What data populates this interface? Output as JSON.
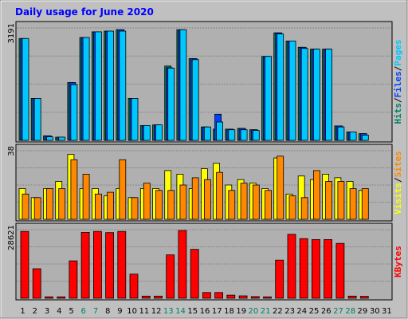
{
  "title": "Daily usage for June 2020",
  "colors": {
    "frame_bg": "#c0c0c0",
    "plot_bg": "#b0b0b0",
    "title": "#0000ff",
    "hits": "#00805f",
    "files": "#0040ff",
    "pages": "#00c8ff",
    "visits": "#ffff00",
    "sites": "#ff8800",
    "kbytes": "#ff0000",
    "weekday_label": "#000080",
    "weekend_label": "#00805f"
  },
  "chart_data": [
    {
      "type": "bar",
      "name": "hits-files-pages",
      "categories": [
        "1",
        "2",
        "3",
        "4",
        "5",
        "6",
        "7",
        "8",
        "9",
        "10",
        "11",
        "12",
        "13",
        "14",
        "15",
        "16",
        "17",
        "18",
        "19",
        "20",
        "21",
        "22",
        "23",
        "24",
        "25",
        "26",
        "27",
        "28",
        "29",
        "30",
        "31"
      ],
      "weekend_days": [
        "6",
        "7",
        "13",
        "14",
        "20",
        "21",
        "27",
        "28"
      ],
      "y_max_label": "3191",
      "ylim": [
        0,
        3191
      ],
      "legend": [
        {
          "text": "Hits",
          "color": "#00805f"
        },
        {
          "text": "/",
          "color": "#000000"
        },
        {
          "text": "Files",
          "color": "#0040ff"
        },
        {
          "text": "/",
          "color": "#000000"
        },
        {
          "text": "Pages",
          "color": "#00c8ff"
        }
      ],
      "series": [
        {
          "name": "Hits",
          "values": [
            2890,
            1190,
            130,
            90,
            1640,
            2920,
            3080,
            3100,
            3140,
            1190,
            420,
            440,
            2110,
            3140,
            2320,
            380,
            320,
            320,
            340,
            300,
            2380,
            3050,
            2820,
            2640,
            2590,
            2590,
            410,
            240,
            190,
            0,
            0
          ]
        },
        {
          "name": "Files",
          "values": [
            2890,
            1190,
            130,
            90,
            1640,
            2920,
            3080,
            3100,
            3140,
            1190,
            420,
            440,
            2060,
            3140,
            2320,
            380,
            740,
            320,
            340,
            300,
            2380,
            3050,
            2820,
            2640,
            2590,
            2590,
            410,
            240,
            190,
            0,
            0
          ]
        },
        {
          "name": "Pages",
          "values": [
            2890,
            1190,
            100,
            90,
            1580,
            2920,
            3080,
            3100,
            3100,
            1190,
            420,
            440,
            2050,
            3140,
            2290,
            380,
            520,
            300,
            300,
            280,
            2380,
            3020,
            2820,
            2610,
            2590,
            2590,
            380,
            240,
            150,
            0,
            0
          ]
        }
      ]
    },
    {
      "type": "bar",
      "name": "visits-sites",
      "categories": [
        "1",
        "2",
        "3",
        "4",
        "5",
        "6",
        "7",
        "8",
        "9",
        "10",
        "11",
        "12",
        "13",
        "14",
        "15",
        "16",
        "17",
        "18",
        "19",
        "20",
        "21",
        "22",
        "23",
        "24",
        "25",
        "26",
        "27",
        "28",
        "29",
        "30",
        "31"
      ],
      "y_max_label": "38",
      "ylim": [
        0,
        38
      ],
      "legend": [
        {
          "text": "Visits",
          "color": "#ffff00"
        },
        {
          "text": "/",
          "color": "#000000"
        },
        {
          "text": "Sites",
          "color": "#ff8800"
        }
      ],
      "series": [
        {
          "name": "Visits",
          "values": [
            17,
            12,
            17,
            21,
            36,
            17,
            17,
            13,
            17,
            12,
            17,
            17,
            27,
            25,
            17,
            28,
            31,
            19,
            22,
            20,
            17,
            34,
            14,
            24,
            22,
            25,
            23,
            21,
            16,
            0,
            0
          ]
        },
        {
          "name": "Sites",
          "values": [
            14,
            12,
            17,
            17,
            33,
            25,
            14,
            15,
            33,
            12,
            20,
            16,
            16,
            19,
            23,
            22,
            26,
            16,
            20,
            19,
            16,
            35,
            13,
            12,
            27,
            21,
            21,
            17,
            17,
            0,
            0
          ]
        }
      ]
    },
    {
      "type": "bar",
      "name": "kbytes",
      "categories": [
        "1",
        "2",
        "3",
        "4",
        "5",
        "6",
        "7",
        "8",
        "9",
        "10",
        "11",
        "12",
        "13",
        "14",
        "15",
        "16",
        "17",
        "18",
        "19",
        "20",
        "21",
        "22",
        "23",
        "24",
        "25",
        "26",
        "27",
        "28",
        "29",
        "30",
        "31"
      ],
      "y_max_label": "28621",
      "ylim": [
        0,
        28621
      ],
      "legend": [
        {
          "text": "KBytes",
          "color": "#ff0000"
        }
      ],
      "series": [
        {
          "name": "KBytes",
          "values": [
            27900,
            12300,
            600,
            600,
            15600,
            27500,
            27900,
            27400,
            27900,
            10100,
            900,
            900,
            18100,
            28300,
            20400,
            2400,
            2400,
            1300,
            1000,
            700,
            600,
            15900,
            26700,
            24900,
            24500,
            24500,
            22900,
            900,
            800,
            0,
            0
          ]
        }
      ]
    }
  ]
}
